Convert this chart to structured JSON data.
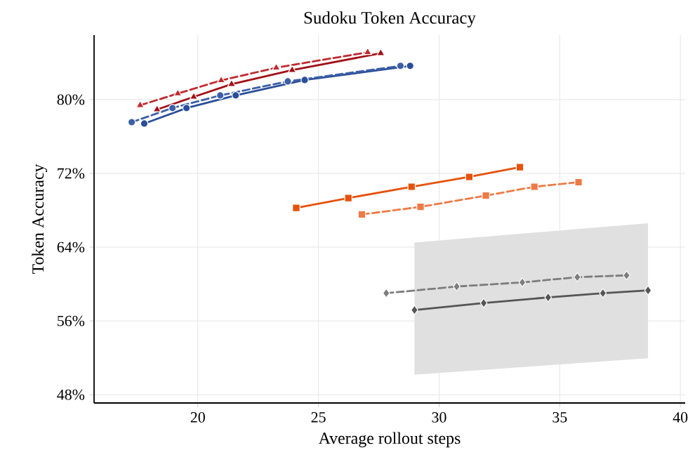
{
  "chart_data": {
    "type": "line",
    "title": "Sudoku Token Accuracy",
    "xlabel": "Average rollout steps",
    "ylabel": "Token Accuracy",
    "xlim": [
      15.7,
      40.2
    ],
    "ylim": [
      47.1,
      87
    ],
    "xticks": [
      20,
      25,
      30,
      35,
      40
    ],
    "yticks": [
      {
        "value": 48,
        "label": "48%"
      },
      {
        "value": 56,
        "label": "56%"
      },
      {
        "value": 64,
        "label": "64%"
      },
      {
        "value": 72,
        "label": "72%"
      },
      {
        "value": 80,
        "label": "80%"
      }
    ],
    "grid": true,
    "series": [
      {
        "color": "#a11016",
        "marker": "triangle",
        "line_style": "solid",
        "x": [
          18.31,
          19.83,
          21.4,
          23.91,
          27.58
        ],
        "values": [
          78.93,
          80.3,
          81.68,
          83.2,
          85.03
        ]
      },
      {
        "color": "#c02a30",
        "marker": "triangle",
        "line_style": "dashed",
        "x": [
          17.61,
          19.17,
          20.97,
          23.25,
          27.04
        ],
        "values": [
          79.39,
          80.66,
          82.09,
          83.46,
          85.14
        ]
      },
      {
        "color": "#2a4e98",
        "marker": "circle",
        "line_style": "solid",
        "x": [
          17.78,
          19.53,
          21.57,
          24.43,
          28.8
        ],
        "values": [
          77.41,
          79.09,
          80.46,
          82.13,
          83.66
        ]
      },
      {
        "color": "#3c5fa8",
        "marker": "circle",
        "line_style": "dashed",
        "x": [
          17.26,
          18.95,
          20.93,
          23.73,
          28.4
        ],
        "values": [
          77.56,
          79.09,
          80.46,
          81.98,
          83.66
        ]
      },
      {
        "color": "#e5520b",
        "marker": "square",
        "line_style": "solid",
        "x": [
          24.08,
          26.24,
          28.86,
          31.25,
          33.35
        ],
        "values": [
          68.26,
          69.33,
          70.55,
          71.62,
          72.68
        ]
      },
      {
        "color": "#ef7a45",
        "marker": "square",
        "line_style": "dashed",
        "x": [
          26.8,
          29.23,
          31.94,
          33.95,
          35.78
        ],
        "values": [
          67.55,
          68.37,
          69.59,
          70.55,
          71.05
        ]
      },
      {
        "color": "#555555",
        "marker": "diamond",
        "line_style": "solid",
        "x": [
          28.98,
          31.85,
          34.52,
          36.79,
          38.66
        ],
        "values": [
          57.18,
          57.94,
          58.55,
          59.01,
          59.31
        ],
        "lower": [
          50.17,
          50.7,
          51.19,
          51.61,
          51.95
        ],
        "upper": [
          64.5,
          65.12,
          65.7,
          66.19,
          66.59
        ]
      },
      {
        "color": "#7d7d7d",
        "marker": "diamond",
        "line_style": "dashed",
        "x": [
          27.81,
          30.73,
          33.45,
          35.73,
          37.77
        ],
        "values": [
          59.01,
          59.73,
          60.18,
          60.75,
          60.94
        ]
      }
    ]
  }
}
